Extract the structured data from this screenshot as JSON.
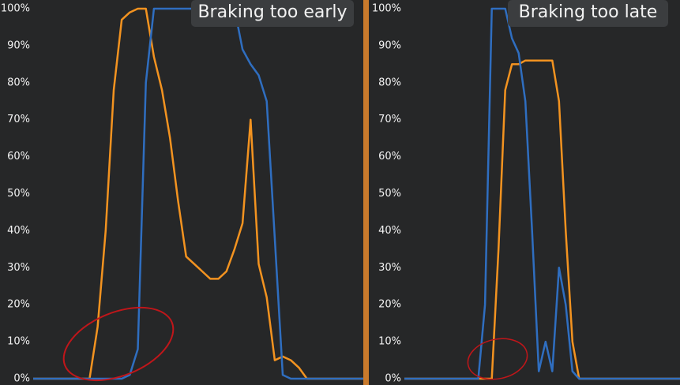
{
  "chart_data": [
    {
      "type": "line",
      "annotation": "Braking too early",
      "ylim": [
        0,
        100
      ],
      "yticks": [
        {
          "value": 0,
          "label": "0%"
        },
        {
          "value": 10,
          "label": "10%"
        },
        {
          "value": 20,
          "label": "20%"
        },
        {
          "value": 30,
          "label": "30%"
        },
        {
          "value": 40,
          "label": "40%"
        },
        {
          "value": 50,
          "label": "50%"
        },
        {
          "value": 60,
          "label": "60%"
        },
        {
          "value": 70,
          "label": "70%"
        },
        {
          "value": 80,
          "label": "80%"
        },
        {
          "value": 90,
          "label": "90%"
        },
        {
          "value": 100,
          "label": "100%"
        }
      ],
      "series": [
        {
          "color": "#f39320",
          "values": [
            0,
            0,
            0,
            0,
            0,
            0,
            0,
            0,
            14,
            40,
            78,
            97,
            99,
            100,
            100,
            87,
            78,
            65,
            48,
            33,
            31,
            29,
            27,
            27,
            29,
            35,
            42,
            70,
            31,
            22,
            5,
            6,
            5,
            3,
            0,
            0,
            0,
            0,
            0,
            0,
            0,
            0
          ]
        },
        {
          "color": "#2f6ec0",
          "values": [
            0,
            0,
            0,
            0,
            0,
            0,
            0,
            0,
            0,
            0,
            0,
            0,
            1,
            8,
            80,
            100,
            100,
            100,
            100,
            100,
            100,
            100,
            100,
            100,
            100,
            100,
            89,
            85,
            82,
            75,
            38,
            1,
            0,
            0,
            0,
            0,
            0,
            0,
            0,
            0,
            0,
            0
          ]
        }
      ]
    },
    {
      "type": "line",
      "annotation": "Braking too late",
      "ylim": [
        0,
        100
      ],
      "yticks": [
        {
          "value": 0,
          "label": "0%"
        },
        {
          "value": 10,
          "label": "10%"
        },
        {
          "value": 20,
          "label": "20%"
        },
        {
          "value": 30,
          "label": "30%"
        },
        {
          "value": 40,
          "label": "40%"
        },
        {
          "value": 50,
          "label": "50%"
        },
        {
          "value": 60,
          "label": "60%"
        },
        {
          "value": 70,
          "label": "70%"
        },
        {
          "value": 80,
          "label": "80%"
        },
        {
          "value": 90,
          "label": "90%"
        },
        {
          "value": 100,
          "label": "100%"
        }
      ],
      "series": [
        {
          "color": "#f39320",
          "values": [
            0,
            0,
            0,
            0,
            0,
            0,
            0,
            0,
            0,
            0,
            0,
            0,
            0,
            0,
            35,
            78,
            85,
            85,
            86,
            86,
            86,
            86,
            86,
            75,
            40,
            10,
            0,
            0,
            0,
            0,
            0,
            0,
            0,
            0,
            0,
            0,
            0,
            0,
            0,
            0,
            0,
            0
          ]
        },
        {
          "color": "#2f6ec0",
          "values": [
            0,
            0,
            0,
            0,
            0,
            0,
            0,
            0,
            0,
            0,
            0,
            0,
            20,
            100,
            100,
            100,
            92,
            88,
            75,
            40,
            2,
            10,
            2,
            30,
            20,
            2,
            0,
            0,
            0,
            0,
            0,
            0,
            0,
            0,
            0,
            0,
            0,
            0,
            0,
            0,
            0,
            0
          ]
        }
      ]
    }
  ]
}
